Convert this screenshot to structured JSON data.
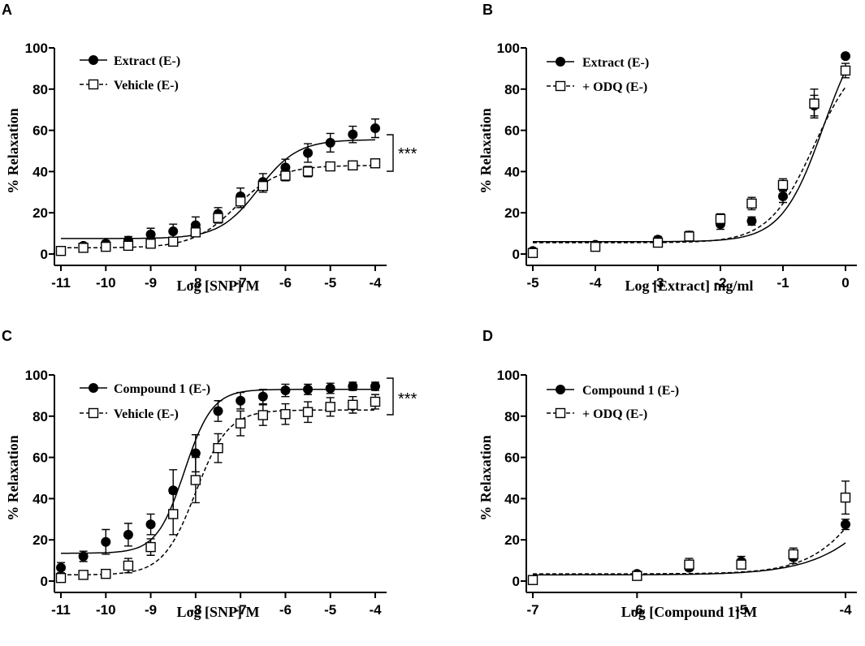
{
  "chart_data": [
    {
      "id": "A",
      "panel_label": "A",
      "type": "scatter",
      "xlabel": "Log [SNP] M",
      "ylabel": "% Relaxation",
      "xlim": [
        -11,
        -4
      ],
      "ylim": [
        0,
        100
      ],
      "xticks": [
        -11,
        -10,
        -9,
        -8,
        -7,
        -6,
        -5,
        -4
      ],
      "yticks": [
        0,
        20,
        40,
        60,
        80,
        100
      ],
      "legend": "top-left",
      "significance": "***",
      "series": [
        {
          "name": "Extract (E-)",
          "marker": "filled-circle",
          "line": "solid",
          "x": [
            -11,
            -10.5,
            -10,
            -9.5,
            -9,
            -8.5,
            -8,
            -7.5,
            -7,
            -6.5,
            -6,
            -5.5,
            -5,
            -4.5,
            -4
          ],
          "y": [
            1.5,
            4,
            5,
            6.5,
            9.5,
            11,
            14,
            19.5,
            28,
            35,
            42,
            49,
            54,
            58,
            61
          ],
          "err": [
            1.5,
            1.2,
            1.5,
            2,
            3,
            3.5,
            4,
            3,
            4,
            4,
            4,
            4.5,
            4.5,
            4,
            4.5
          ],
          "fit": {
            "bottom": 7.5,
            "top": 55.5,
            "logEC50": -6.6,
            "hill": 1.0
          }
        },
        {
          "name": "Vehicle (E-)",
          "marker": "open-square",
          "line": "dashed",
          "x": [
            -11,
            -10.5,
            -10,
            -9.5,
            -9,
            -8.5,
            -8,
            -7.5,
            -7,
            -6.5,
            -6,
            -5.5,
            -5,
            -4.5,
            -4
          ],
          "y": [
            1.5,
            3,
            3.5,
            4,
            5,
            6,
            10.5,
            17.5,
            25.5,
            33,
            38,
            40,
            42.5,
            43,
            44
          ],
          "err": [
            1.5,
            1,
            1,
            1,
            1.5,
            1.5,
            2,
            2.5,
            3,
            3,
            2.5,
            2.5,
            2,
            2,
            2
          ],
          "fit": {
            "bottom": 3,
            "top": 43,
            "logEC50": -7.1,
            "hill": 0.9
          }
        }
      ]
    },
    {
      "id": "B",
      "panel_label": "B",
      "type": "scatter",
      "xlabel": "Log [Extract] mg/ml",
      "ylabel": "% Relaxation",
      "xlim": [
        -5,
        0
      ],
      "ylim": [
        0,
        100
      ],
      "xticks": [
        -5,
        -4,
        -3,
        -2,
        -1,
        0
      ],
      "yticks": [
        0,
        20,
        40,
        60,
        80,
        100
      ],
      "legend": "top-left",
      "series": [
        {
          "name": "Extract (E-)",
          "marker": "filled-circle",
          "line": "solid",
          "x": [
            -5,
            -4,
            -3,
            -2.5,
            -2,
            -1.5,
            -1,
            -0.5,
            0
          ],
          "y": [
            1.5,
            4.5,
            7,
            9,
            14.5,
            16,
            28,
            72,
            96
          ],
          "err": [
            1,
            1,
            1.5,
            2,
            2.5,
            2,
            3,
            5,
            1
          ],
          "fit": {
            "bottom": 6,
            "top": 118,
            "logEC50": -0.35,
            "hill": 1.3
          }
        },
        {
          "name": "+ ODQ (E-)",
          "marker": "open-square",
          "line": "dashed",
          "x": [
            -5,
            -4,
            -3,
            -2.5,
            -2,
            -1.5,
            -1,
            -0.5,
            0
          ],
          "y": [
            0.5,
            3.5,
            5.5,
            8.5,
            17,
            24.5,
            33.5,
            73,
            89
          ],
          "err": [
            1,
            1,
            1.5,
            2,
            2.5,
            3,
            3,
            7,
            3.5
          ],
          "fit": {
            "bottom": 5.5,
            "top": 100,
            "logEC50": -0.5,
            "hill": 1.2
          }
        }
      ]
    },
    {
      "id": "C",
      "panel_label": "C",
      "type": "scatter",
      "xlabel": "Log [SNP] M",
      "ylabel": "% Relaxation",
      "xlim": [
        -11,
        -4
      ],
      "ylim": [
        0,
        100
      ],
      "xticks": [
        -11,
        -10,
        -9,
        -8,
        -7,
        -6,
        -5,
        -4
      ],
      "yticks": [
        0,
        20,
        40,
        60,
        80,
        100
      ],
      "legend": "top-left",
      "significance": "***",
      "series": [
        {
          "name": "Compound 1 (E-)",
          "marker": "filled-circle",
          "line": "solid",
          "x": [
            -11,
            -10.5,
            -10,
            -9.5,
            -9,
            -8.5,
            -8,
            -7.5,
            -7,
            -6.5,
            -6,
            -5.5,
            -5,
            -4.5,
            -4
          ],
          "y": [
            6.5,
            12,
            19,
            22.5,
            27.5,
            44,
            62,
            82.5,
            87.5,
            89.5,
            92.5,
            93,
            93.5,
            94.5,
            94.5
          ],
          "err": [
            2.5,
            2.5,
            6,
            5.5,
            5,
            10,
            9,
            5,
            4,
            3.5,
            3,
            2.5,
            2.5,
            2,
            2
          ],
          "fit": {
            "bottom": 13.5,
            "top": 93,
            "logEC50": -8.25,
            "hill": 1.4
          }
        },
        {
          "name": "Vehicle (E-)",
          "marker": "open-square",
          "line": "dashed",
          "x": [
            -11,
            -10.5,
            -10,
            -9.5,
            -9,
            -8.5,
            -8,
            -7.5,
            -7,
            -6.5,
            -6,
            -5.5,
            -5,
            -4.5,
            -4
          ],
          "y": [
            1.5,
            3,
            3.5,
            7.5,
            16.5,
            32.5,
            49,
            64.5,
            76.5,
            80.5,
            81,
            82,
            84.5,
            85.5,
            87
          ],
          "err": [
            2,
            1.5,
            2,
            3.5,
            4,
            10,
            11,
            7,
            6,
            5,
            5,
            5,
            4.5,
            4,
            3.5
          ],
          "fit": {
            "bottom": 3,
            "top": 83,
            "logEC50": -8.0,
            "hill": 1.2
          }
        }
      ]
    },
    {
      "id": "D",
      "panel_label": "D",
      "type": "scatter",
      "xlabel": "Log [Compound 1] M",
      "ylabel": "% Relaxation",
      "xlim": [
        -7,
        -4
      ],
      "ylim": [
        0,
        100
      ],
      "xticks": [
        -7,
        -6,
        -5,
        -4
      ],
      "yticks": [
        0,
        20,
        40,
        60,
        80,
        100
      ],
      "legend": "top-left",
      "series": [
        {
          "name": "Compound 1 (E-)",
          "marker": "filled-circle",
          "line": "solid",
          "x": [
            -7,
            -6,
            -5.5,
            -5,
            -4.5,
            -4
          ],
          "y": [
            0.5,
            3.5,
            6.5,
            9.5,
            11.5,
            27.5
          ],
          "err": [
            1,
            1,
            1.5,
            2.5,
            3,
            2.5
          ],
          "fit": {
            "bottom": 3,
            "top": 100,
            "logEC50": -3.4,
            "hill": 1.2
          }
        },
        {
          "name": "+ ODQ (E-)",
          "marker": "open-square",
          "line": "dashed",
          "x": [
            -7,
            -6,
            -5.5,
            -5,
            -4.5,
            -4
          ],
          "y": [
            0.5,
            2.5,
            8,
            8,
            13,
            40.5
          ],
          "err": [
            1,
            1,
            3,
            2,
            3,
            8
          ],
          "fit": {
            "bottom": 3.5,
            "top": 100,
            "logEC50": -3.65,
            "hill": 1.5
          }
        }
      ]
    }
  ]
}
